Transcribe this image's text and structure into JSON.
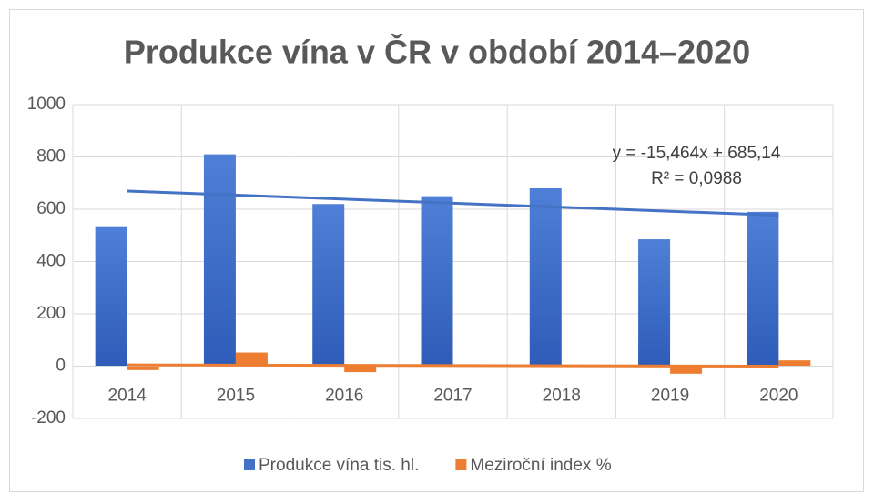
{
  "chart_data": {
    "type": "bar",
    "title": "Produkce vína v ČR v období 2014–2020",
    "categories": [
      "2014",
      "2015",
      "2016",
      "2017",
      "2018",
      "2019",
      "2020"
    ],
    "series": [
      {
        "name": "Produkce vína tis. hl.",
        "color": "#4472c4",
        "values": [
          535,
          810,
          620,
          650,
          680,
          485,
          590
        ],
        "trendline": {
          "slope": -15.464,
          "intercept": 685.14,
          "color": "#4472c4",
          "equation": "y = -15,464x + 685,14",
          "r2": "R² = 0,0988"
        }
      },
      {
        "name": "Meziroční index %",
        "color": "#ed7d31",
        "values": [
          -15,
          52,
          -23,
          5,
          5,
          -29,
          22
        ],
        "trendline": {
          "slope": -0.82,
          "intercept": 5.71,
          "color": "#ed7d31"
        }
      }
    ],
    "ylim": [
      -200,
      1000
    ],
    "yticks": [
      -200,
      0,
      200,
      400,
      600,
      800,
      1000
    ],
    "grid": true,
    "legend": "bottom"
  }
}
